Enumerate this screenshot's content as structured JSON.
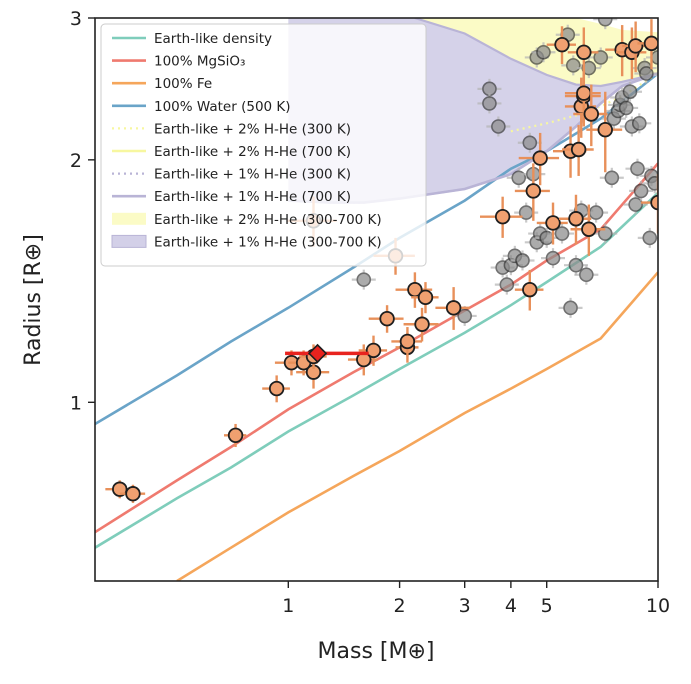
{
  "chart_data": {
    "type": "scatter",
    "x_scale": "log",
    "y_scale": "log",
    "xlim": [
      0.3,
      10
    ],
    "ylim": [
      0.6,
      3.0
    ],
    "xlabel": "Mass [M⊕]",
    "ylabel": "Radius [R⊕]",
    "x_ticks": [
      {
        "value": 1,
        "label": "1"
      },
      {
        "value": 2,
        "label": "2"
      },
      {
        "value": 3,
        "label": "3"
      },
      {
        "value": 4,
        "label": "4"
      },
      {
        "value": 5,
        "label": "5"
      },
      {
        "value": 10,
        "label": "10"
      }
    ],
    "y_ticks": [
      {
        "value": 1,
        "label": "1"
      },
      {
        "value": 2,
        "label": "2"
      },
      {
        "value": 3,
        "label": "3"
      }
    ],
    "grid": false,
    "legend_position": "top-left",
    "legend": [
      {
        "label": "Earth-like density",
        "style": "line",
        "color": "#7fcdbb"
      },
      {
        "label": "100% MgSiO₃",
        "style": "line",
        "color": "#ef7a6f"
      },
      {
        "label": "100% Fe",
        "style": "line",
        "color": "#f5a65b"
      },
      {
        "label": "100% Water (500 K)",
        "style": "line",
        "color": "#6aa4c8"
      },
      {
        "label": "Earth-like + 2% H-He (300 K)",
        "style": "dotted",
        "color": "#f7f7a0"
      },
      {
        "label": "Earth-like + 2% H-He (700 K)",
        "style": "line",
        "color": "#f7f7a0"
      },
      {
        "label": "Earth-like + 1% H-He (300 K)",
        "style": "dotted",
        "color": "#b9b4d6"
      },
      {
        "label": "Earth-like + 1% H-He (700 K)",
        "style": "line",
        "color": "#b9b4d6"
      },
      {
        "label": "Earth-like + 2% H-He (300-700 K)",
        "style": "patch",
        "color": "#fbfbc6"
      },
      {
        "label": "Earth-like + 1% H-He (300-700 K)",
        "style": "patch",
        "color": "#d3d0e8"
      }
    ],
    "colors": {
      "highlighted_points": "#f0a070",
      "highlighted_errorbars": "#e8905a",
      "background_points": "#8c8c8c",
      "background_errorbars": "#b5b5b5",
      "target": "#e8231e"
    },
    "series": [
      {
        "role": "models",
        "curves": [
          {
            "legend_index": 0,
            "points": [
              [
                0.3,
                0.66
              ],
              [
                0.5,
                0.76
              ],
              [
                0.7,
                0.83
              ],
              [
                1.0,
                0.92
              ],
              [
                1.5,
                1.02
              ],
              [
                2.0,
                1.1
              ],
              [
                3.0,
                1.22
              ],
              [
                4.0,
                1.32
              ],
              [
                5.0,
                1.41
              ],
              [
                7.0,
                1.56
              ],
              [
                10.0,
                1.82
              ]
            ]
          },
          {
            "legend_index": 1,
            "points": [
              [
                0.3,
                0.69
              ],
              [
                0.5,
                0.8
              ],
              [
                0.7,
                0.88
              ],
              [
                1.0,
                0.98
              ],
              [
                1.5,
                1.09
              ],
              [
                2.0,
                1.17
              ],
              [
                3.0,
                1.3
              ],
              [
                4.0,
                1.4
              ],
              [
                5.0,
                1.5
              ],
              [
                7.0,
                1.64
              ],
              [
                10.0,
                1.98
              ]
            ]
          },
          {
            "legend_index": 2,
            "points": [
              [
                0.5,
                0.6
              ],
              [
                0.7,
                0.66
              ],
              [
                1.0,
                0.73
              ],
              [
                1.5,
                0.81
              ],
              [
                2.0,
                0.87
              ],
              [
                3.0,
                0.97
              ],
              [
                4.0,
                1.04
              ],
              [
                5.0,
                1.1
              ],
              [
                7.0,
                1.2
              ],
              [
                10.0,
                1.45
              ]
            ]
          },
          {
            "legend_index": 3,
            "points": [
              [
                0.3,
                0.94
              ],
              [
                0.5,
                1.08
              ],
              [
                0.7,
                1.19
              ],
              [
                1.0,
                1.31
              ],
              [
                1.5,
                1.47
              ],
              [
                2.0,
                1.6
              ],
              [
                3.0,
                1.78
              ],
              [
                4.0,
                1.95
              ],
              [
                5.0,
                2.05
              ],
              [
                7.0,
                2.25
              ],
              [
                10.0,
                2.56
              ]
            ]
          },
          {
            "legend_index": 4,
            "points": [
              [
                4.0,
                2.17
              ],
              [
                5.0,
                2.22
              ],
              [
                6.0,
                2.27
              ],
              [
                7.0,
                2.33
              ],
              [
                8.0,
                2.4
              ],
              [
                10.0,
                2.56
              ]
            ]
          },
          {
            "legend_index": 7,
            "points": [
              [
                1.0,
                1.78
              ],
              [
                1.3,
                1.77
              ],
              [
                1.6,
                1.77
              ],
              [
                2.0,
                1.79
              ],
              [
                3.0,
                1.84
              ],
              [
                4.0,
                1.92
              ],
              [
                5.0,
                2.05
              ],
              [
                6.0,
                2.2
              ],
              [
                7.0,
                2.35
              ],
              [
                8.0,
                2.47
              ],
              [
                10.0,
                2.56
              ]
            ]
          }
        ]
      },
      {
        "role": "envelope-2pct-H-He",
        "upper": [
          [
            2.2,
            3.0
          ],
          [
            6.0,
            3.0
          ],
          [
            7.0,
            2.95
          ],
          [
            8.0,
            2.9
          ],
          [
            10.0,
            2.88
          ]
        ],
        "lower": [
          [
            2.2,
            3.0
          ],
          [
            3.0,
            2.87
          ],
          [
            4.0,
            2.67
          ],
          [
            5.0,
            2.55
          ],
          [
            6.0,
            2.48
          ],
          [
            7.0,
            2.47
          ],
          [
            8.0,
            2.5
          ],
          [
            10.0,
            2.56
          ]
        ]
      },
      {
        "role": "envelope-1pct-H-He",
        "upper": [
          [
            1.0,
            3.0
          ],
          [
            2.2,
            3.0
          ],
          [
            3.0,
            2.87
          ],
          [
            4.0,
            2.67
          ],
          [
            5.0,
            2.55
          ],
          [
            6.0,
            2.48
          ],
          [
            7.0,
            2.47
          ],
          [
            8.0,
            2.5
          ],
          [
            10.0,
            2.56
          ]
        ],
        "lower": [
          [
            1.0,
            1.78
          ],
          [
            1.3,
            1.77
          ],
          [
            1.6,
            1.77
          ],
          [
            2.0,
            1.79
          ],
          [
            3.0,
            1.84
          ],
          [
            4.0,
            1.92
          ],
          [
            5.0,
            2.05
          ],
          [
            6.0,
            2.2
          ],
          [
            7.0,
            2.35
          ],
          [
            8.0,
            2.47
          ],
          [
            10.0,
            2.56
          ]
        ]
      },
      {
        "role": "highlighted",
        "points": [
          {
            "x": 0.35,
            "y": 0.78,
            "xerr": 0.03,
            "yerr": 0.02
          },
          {
            "x": 0.38,
            "y": 0.77,
            "xerr": 0.03,
            "yerr": 0.02
          },
          {
            "x": 0.72,
            "y": 0.91,
            "xerr": 0.05,
            "yerr": 0.03
          },
          {
            "x": 0.93,
            "y": 1.04,
            "xerr": 0.08,
            "yerr": 0.04
          },
          {
            "x": 1.02,
            "y": 1.12,
            "xerr": 0.1,
            "yerr": 0.04
          },
          {
            "x": 1.1,
            "y": 1.12,
            "xerr": 0.1,
            "yerr": 0.04
          },
          {
            "x": 1.17,
            "y": 1.09,
            "xerr": 0.12,
            "yerr": 0.05
          },
          {
            "x": 1.17,
            "y": 1.14,
            "xerr": 0.1,
            "yerr": 0.04
          },
          {
            "x": 1.17,
            "y": 1.68,
            "xerr": 0.18,
            "yerr": 0.12
          },
          {
            "x": 1.6,
            "y": 1.13,
            "xerr": 0.15,
            "yerr": 0.05
          },
          {
            "x": 1.7,
            "y": 1.16,
            "xerr": 0.15,
            "yerr": 0.05
          },
          {
            "x": 1.85,
            "y": 1.27,
            "xerr": 0.2,
            "yerr": 0.05
          },
          {
            "x": 1.95,
            "y": 1.52,
            "xerr": 0.25,
            "yerr": 0.08
          },
          {
            "x": 2.1,
            "y": 1.17,
            "xerr": 0.15,
            "yerr": 0.05
          },
          {
            "x": 2.1,
            "y": 1.19,
            "xerr": 0.2,
            "yerr": 0.05
          },
          {
            "x": 2.2,
            "y": 1.38,
            "xerr": 0.25,
            "yerr": 0.07
          },
          {
            "x": 2.3,
            "y": 1.25,
            "xerr": 0.25,
            "yerr": 0.06
          },
          {
            "x": 2.35,
            "y": 1.35,
            "xerr": 0.2,
            "yerr": 0.06
          },
          {
            "x": 2.8,
            "y": 1.31,
            "xerr": 0.3,
            "yerr": 0.08
          },
          {
            "x": 3.8,
            "y": 1.7,
            "xerr": 0.5,
            "yerr": 0.1
          },
          {
            "x": 4.5,
            "y": 1.38,
            "xerr": 0.4,
            "yerr": 0.08
          },
          {
            "x": 4.6,
            "y": 1.83,
            "xerr": 0.5,
            "yerr": 0.15
          },
          {
            "x": 4.8,
            "y": 2.01,
            "xerr": 0.6,
            "yerr": 0.15
          },
          {
            "x": 5.2,
            "y": 1.67,
            "xerr": 0.5,
            "yerr": 0.1
          },
          {
            "x": 5.8,
            "y": 2.05,
            "xerr": 0.6,
            "yerr": 0.15
          },
          {
            "x": 6.0,
            "y": 1.69,
            "xerr": 0.6,
            "yerr": 0.12
          },
          {
            "x": 6.1,
            "y": 2.06,
            "xerr": 0.6,
            "yerr": 0.15
          },
          {
            "x": 6.2,
            "y": 2.33,
            "xerr": 0.6,
            "yerr": 0.2
          },
          {
            "x": 6.3,
            "y": 2.4,
            "xerr": 0.7,
            "yerr": 0.2
          },
          {
            "x": 6.3,
            "y": 2.42,
            "xerr": 0.7,
            "yerr": 0.2
          },
          {
            "x": 6.5,
            "y": 1.64,
            "xerr": 0.7,
            "yerr": 0.12
          },
          {
            "x": 6.6,
            "y": 2.28,
            "xerr": 0.7,
            "yerr": 0.2
          },
          {
            "x": 7.2,
            "y": 2.18,
            "xerr": 0.8,
            "yerr": 0.25
          },
          {
            "x": 5.5,
            "y": 2.78,
            "xerr": 0.5,
            "yerr": 0.15
          },
          {
            "x": 6.3,
            "y": 2.72,
            "xerr": 0.6,
            "yerr": 0.2
          },
          {
            "x": 8.0,
            "y": 2.74,
            "xerr": 0.8,
            "yerr": 0.2
          },
          {
            "x": 8.5,
            "y": 2.72,
            "xerr": 0.8,
            "yerr": 0.2
          },
          {
            "x": 8.7,
            "y": 2.77,
            "xerr": 0.7,
            "yerr": 0.2
          },
          {
            "x": 9.6,
            "y": 2.79,
            "xerr": 0.8,
            "yerr": 0.2
          },
          {
            "x": 10.0,
            "y": 1.77,
            "xerr": 1.0,
            "yerr": 0.15
          }
        ]
      },
      {
        "role": "background",
        "points": [
          {
            "x": 1.6,
            "y": 1.42
          },
          {
            "x": 3.0,
            "y": 1.28
          },
          {
            "x": 3.8,
            "y": 1.47
          },
          {
            "x": 3.9,
            "y": 1.4
          },
          {
            "x": 4.0,
            "y": 1.48
          },
          {
            "x": 4.1,
            "y": 1.52
          },
          {
            "x": 4.2,
            "y": 1.9
          },
          {
            "x": 4.3,
            "y": 1.5
          },
          {
            "x": 4.4,
            "y": 1.72
          },
          {
            "x": 4.5,
            "y": 2.1
          },
          {
            "x": 4.6,
            "y": 1.92
          },
          {
            "x": 4.7,
            "y": 1.58
          },
          {
            "x": 4.8,
            "y": 1.62
          },
          {
            "x": 5.0,
            "y": 1.6
          },
          {
            "x": 5.2,
            "y": 1.51
          },
          {
            "x": 5.5,
            "y": 1.62
          },
          {
            "x": 5.8,
            "y": 1.31
          },
          {
            "x": 6.0,
            "y": 1.48
          },
          {
            "x": 6.2,
            "y": 1.73
          },
          {
            "x": 6.4,
            "y": 1.44
          },
          {
            "x": 6.8,
            "y": 1.72
          },
          {
            "x": 7.2,
            "y": 1.62
          },
          {
            "x": 7.5,
            "y": 1.9
          },
          {
            "x": 7.6,
            "y": 2.25
          },
          {
            "x": 7.8,
            "y": 2.3
          },
          {
            "x": 7.9,
            "y": 2.34
          },
          {
            "x": 8.0,
            "y": 2.39
          },
          {
            "x": 8.2,
            "y": 2.32
          },
          {
            "x": 8.4,
            "y": 2.43
          },
          {
            "x": 8.5,
            "y": 2.2
          },
          {
            "x": 8.7,
            "y": 1.76
          },
          {
            "x": 8.8,
            "y": 1.95
          },
          {
            "x": 8.9,
            "y": 2.22
          },
          {
            "x": 9.0,
            "y": 1.83
          },
          {
            "x": 9.2,
            "y": 2.6
          },
          {
            "x": 9.5,
            "y": 1.6
          },
          {
            "x": 9.6,
            "y": 1.91
          },
          {
            "x": 9.8,
            "y": 1.87
          },
          {
            "x": 3.5,
            "y": 2.45
          },
          {
            "x": 3.5,
            "y": 2.35
          },
          {
            "x": 3.7,
            "y": 2.2
          },
          {
            "x": 4.7,
            "y": 2.68
          },
          {
            "x": 4.9,
            "y": 2.72
          },
          {
            "x": 5.7,
            "y": 2.86
          },
          {
            "x": 5.9,
            "y": 2.62
          },
          {
            "x": 6.5,
            "y": 2.6
          },
          {
            "x": 7.0,
            "y": 2.68
          },
          {
            "x": 7.2,
            "y": 2.99
          },
          {
            "x": 9.3,
            "y": 2.56
          },
          {
            "x": 10.0,
            "y": 2.68
          }
        ]
      },
      {
        "role": "target",
        "marker": "diamond",
        "points": [
          {
            "x": 1.2,
            "y": 1.15,
            "xerr_low": 0.22,
            "xerr_high": 0.45
          }
        ]
      }
    ]
  }
}
